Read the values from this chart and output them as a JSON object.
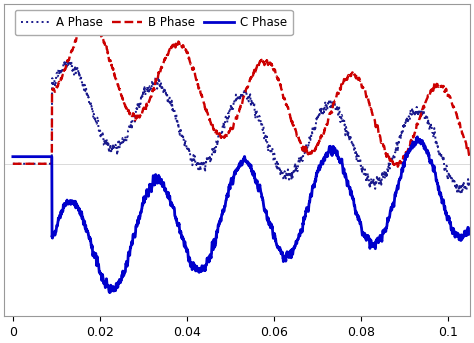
{
  "background_color": "#ffffff",
  "legend_labels": [
    "A Phase",
    "B Phase",
    "C Phase"
  ],
  "a_color": "#1a1a8c",
  "b_color": "#cc0000",
  "c_color": "#0000cc",
  "xlim": [
    -0.002,
    0.105
  ],
  "xticks": [
    0,
    0.02,
    0.04,
    0.06,
    0.08,
    0.1
  ],
  "xticklabels": [
    "0",
    "0.02",
    "0.04",
    "0.06",
    "0.08",
    "0.1"
  ],
  "ylim": [
    -1.05,
    1.1
  ],
  "freq": 50,
  "dt": 5e-05,
  "t_switch": 0.009,
  "a_linewidth": 1.4,
  "b_linewidth": 1.7,
  "c_linewidth": 2.0
}
